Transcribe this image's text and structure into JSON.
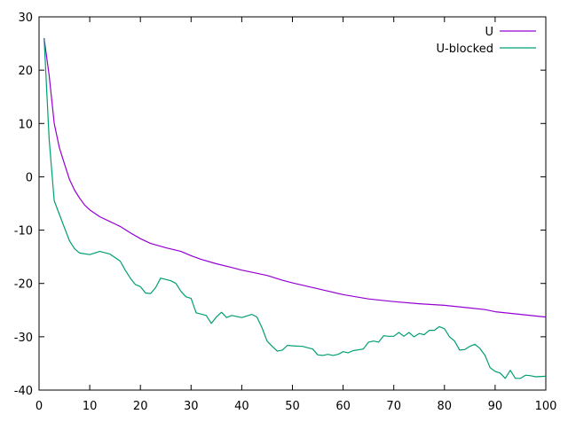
{
  "chart_data": {
    "type": "line",
    "title": "",
    "xlabel": "",
    "ylabel": "",
    "xlim": [
      0,
      100
    ],
    "ylim": [
      -40,
      30
    ],
    "x_ticks": [
      0,
      10,
      20,
      30,
      40,
      50,
      60,
      70,
      80,
      90,
      100
    ],
    "y_ticks": [
      30,
      20,
      10,
      0,
      -10,
      -20,
      -30,
      -40
    ],
    "grid": false,
    "legend_position": "top-right",
    "series": [
      {
        "name": "U",
        "color": "#9400d3",
        "points": [
          [
            1,
            26.0
          ],
          [
            2,
            19.0
          ],
          [
            3,
            10.0
          ],
          [
            4,
            5.5
          ],
          [
            5,
            2.5
          ],
          [
            6,
            -0.5
          ],
          [
            7,
            -2.5
          ],
          [
            8,
            -4.0
          ],
          [
            9,
            -5.3
          ],
          [
            10,
            -6.2
          ],
          [
            12,
            -7.5
          ],
          [
            14,
            -8.4
          ],
          [
            16,
            -9.3
          ],
          [
            18,
            -10.5
          ],
          [
            20,
            -11.6
          ],
          [
            22,
            -12.5
          ],
          [
            25,
            -13.3
          ],
          [
            28,
            -14.0
          ],
          [
            30,
            -14.8
          ],
          [
            32,
            -15.5
          ],
          [
            35,
            -16.3
          ],
          [
            38,
            -17.0
          ],
          [
            40,
            -17.5
          ],
          [
            42,
            -17.9
          ],
          [
            45,
            -18.5
          ],
          [
            48,
            -19.4
          ],
          [
            50,
            -19.9
          ],
          [
            55,
            -21.0
          ],
          [
            60,
            -22.1
          ],
          [
            65,
            -22.9
          ],
          [
            70,
            -23.4
          ],
          [
            75,
            -23.8
          ],
          [
            80,
            -24.1
          ],
          [
            85,
            -24.6
          ],
          [
            88,
            -24.9
          ],
          [
            90,
            -25.3
          ],
          [
            95,
            -25.8
          ],
          [
            100,
            -26.3
          ]
        ]
      },
      {
        "name": "U-blocked",
        "color": "#009e73",
        "points": [
          [
            1,
            26.0
          ],
          [
            2,
            7.0
          ],
          [
            3,
            -4.5
          ],
          [
            4,
            -7.0
          ],
          [
            5,
            -9.5
          ],
          [
            6,
            -12.0
          ],
          [
            7,
            -13.5
          ],
          [
            8,
            -14.3
          ],
          [
            10,
            -14.6
          ],
          [
            12,
            -14.0
          ],
          [
            14,
            -14.5
          ],
          [
            16,
            -15.8
          ],
          [
            17,
            -17.5
          ],
          [
            18,
            -19.0
          ],
          [
            19,
            -20.2
          ],
          [
            20,
            -20.6
          ],
          [
            21,
            -21.8
          ],
          [
            22,
            -21.9
          ],
          [
            23,
            -20.8
          ],
          [
            24,
            -19.0
          ],
          [
            26,
            -19.5
          ],
          [
            27,
            -20.0
          ],
          [
            28,
            -21.5
          ],
          [
            29,
            -22.5
          ],
          [
            30,
            -22.8
          ],
          [
            31,
            -25.5
          ],
          [
            33,
            -26.0
          ],
          [
            34,
            -27.5
          ],
          [
            35,
            -26.3
          ],
          [
            36,
            -25.4
          ],
          [
            37,
            -26.4
          ],
          [
            38,
            -26.0
          ],
          [
            40,
            -26.4
          ],
          [
            41,
            -26.1
          ],
          [
            42,
            -25.8
          ],
          [
            43,
            -26.3
          ],
          [
            44,
            -28.3
          ],
          [
            45,
            -30.8
          ],
          [
            46,
            -31.8
          ],
          [
            47,
            -32.7
          ],
          [
            48,
            -32.5
          ],
          [
            49,
            -31.6
          ],
          [
            50,
            -31.7
          ],
          [
            52,
            -31.8
          ],
          [
            54,
            -32.3
          ],
          [
            55,
            -33.4
          ],
          [
            56,
            -33.5
          ],
          [
            57,
            -33.3
          ],
          [
            58,
            -33.5
          ],
          [
            59,
            -33.3
          ],
          [
            60,
            -32.8
          ],
          [
            61,
            -33.0
          ],
          [
            62,
            -32.6
          ],
          [
            64,
            -32.3
          ],
          [
            65,
            -31.0
          ],
          [
            66,
            -30.8
          ],
          [
            67,
            -31.0
          ],
          [
            68,
            -29.8
          ],
          [
            69,
            -29.9
          ],
          [
            70,
            -29.9
          ],
          [
            71,
            -29.2
          ],
          [
            72,
            -29.9
          ],
          [
            73,
            -29.2
          ],
          [
            74,
            -30.0
          ],
          [
            75,
            -29.4
          ],
          [
            76,
            -29.6
          ],
          [
            77,
            -28.8
          ],
          [
            78,
            -28.8
          ],
          [
            79,
            -28.1
          ],
          [
            80,
            -28.5
          ],
          [
            81,
            -30.0
          ],
          [
            82,
            -30.8
          ],
          [
            83,
            -32.5
          ],
          [
            84,
            -32.4
          ],
          [
            85,
            -31.8
          ],
          [
            86,
            -31.4
          ],
          [
            87,
            -32.2
          ],
          [
            88,
            -33.5
          ],
          [
            89,
            -35.8
          ],
          [
            90,
            -36.5
          ],
          [
            91,
            -36.8
          ],
          [
            92,
            -37.8
          ],
          [
            93,
            -36.3
          ],
          [
            94,
            -37.8
          ],
          [
            95,
            -37.8
          ],
          [
            96,
            -37.2
          ],
          [
            97,
            -37.3
          ],
          [
            98,
            -37.5
          ],
          [
            100,
            -37.4
          ]
        ]
      }
    ]
  }
}
